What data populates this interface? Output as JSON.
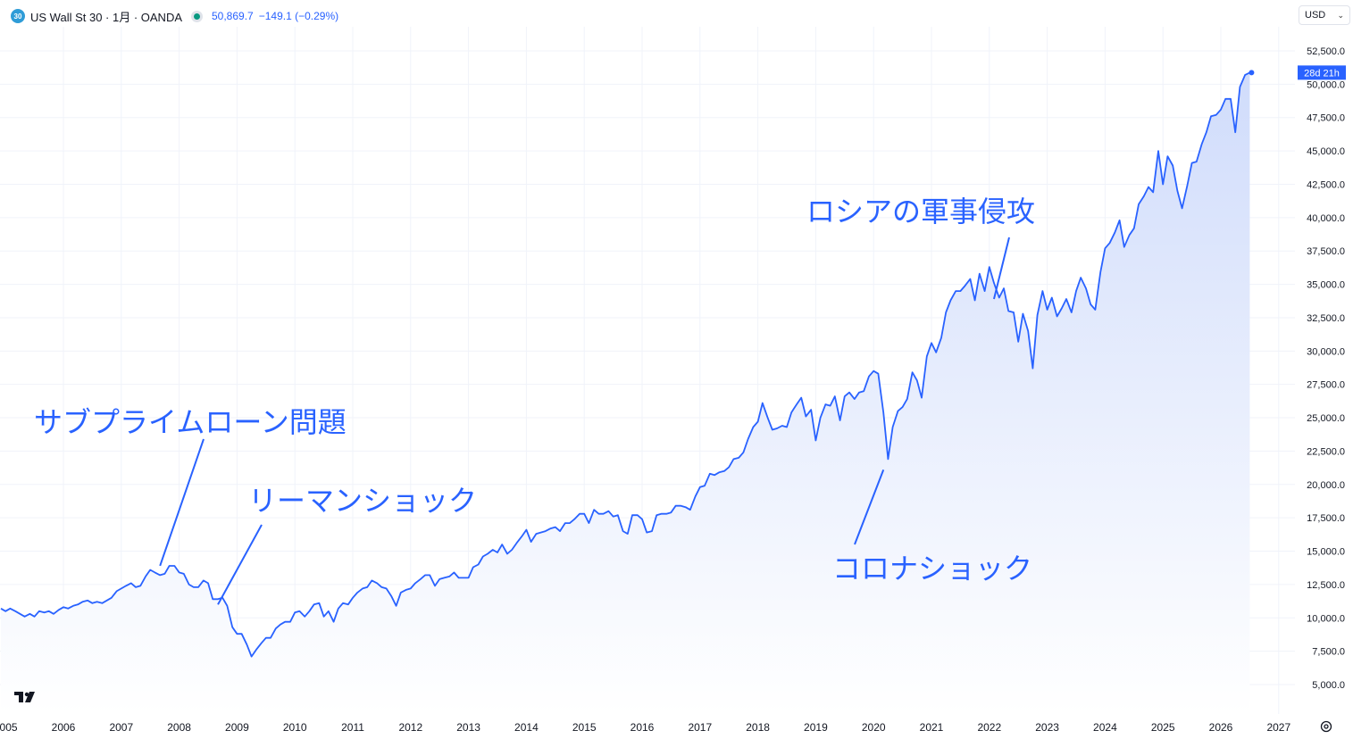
{
  "header": {
    "badge": "30",
    "title": "US Wall St 30 · 1月 · OANDA",
    "price": "50,869.7",
    "change": "−149.1 (−0.29%)"
  },
  "currency": {
    "label": "USD"
  },
  "countdown": "28d 21h",
  "colors": {
    "line": "#2962ff",
    "fill_top": "#d0dcfb",
    "fill_bottom": "#ffffff",
    "annotation": "#2962ff",
    "grid": "#f0f3fa"
  },
  "annotations": [
    {
      "text": "サブプライムローン問題",
      "x": 2007.67,
      "y": 13900
    },
    {
      "text": "リーマンショック",
      "x": 2008.67,
      "y": 11000
    },
    {
      "text": "コロナショック",
      "x": 2020.17,
      "y": 21100
    },
    {
      "text": "ロシアの軍事侵攻",
      "x": 2022.08,
      "y": 33900
    }
  ],
  "chart_data": {
    "type": "area",
    "xlabel": "",
    "ylabel": "",
    "x_ticks": [
      "2006",
      "2007",
      "2008",
      "2009",
      "2010",
      "2011",
      "2012",
      "2013",
      "2014",
      "2015",
      "2016",
      "2017",
      "2018",
      "2019",
      "2020",
      "2021",
      "2022",
      "2023",
      "2024",
      "2025",
      "2026",
      "2027"
    ],
    "y_ticks": [
      "5,000.0",
      "7,500.0",
      "10,000.0",
      "12,500.0",
      "15,000.0",
      "17,500.0",
      "20,000.0",
      "22,500.0",
      "25,000.0",
      "27,500.0",
      "30,000.0",
      "32,500.0",
      "35,000.0",
      "37,500.0",
      "40,000.0",
      "42,500.0",
      "45,000.0",
      "47,500.0",
      "50,000.0",
      "52,500.0"
    ],
    "ylim": [
      3000,
      54000
    ],
    "xlim": [
      2004.92,
      2027.7
    ],
    "grid": true,
    "series": [
      {
        "values": [
          [
            2004.92,
            10700
          ],
          [
            2005.0,
            10500
          ],
          [
            2005.08,
            10700
          ],
          [
            2005.17,
            10500
          ],
          [
            2005.25,
            10300
          ],
          [
            2005.33,
            10100
          ],
          [
            2005.42,
            10300
          ],
          [
            2005.5,
            10100
          ],
          [
            2005.58,
            10500
          ],
          [
            2005.67,
            10400
          ],
          [
            2005.75,
            10500
          ],
          [
            2005.83,
            10300
          ],
          [
            2005.92,
            10600
          ],
          [
            2006.0,
            10800
          ],
          [
            2006.08,
            10700
          ],
          [
            2006.17,
            10900
          ],
          [
            2006.25,
            11000
          ],
          [
            2006.33,
            11200
          ],
          [
            2006.42,
            11300
          ],
          [
            2006.5,
            11100
          ],
          [
            2006.58,
            11200
          ],
          [
            2006.67,
            11100
          ],
          [
            2006.75,
            11300
          ],
          [
            2006.83,
            11500
          ],
          [
            2006.92,
            12000
          ],
          [
            2007.0,
            12200
          ],
          [
            2007.08,
            12400
          ],
          [
            2007.17,
            12600
          ],
          [
            2007.25,
            12300
          ],
          [
            2007.33,
            12400
          ],
          [
            2007.42,
            13100
          ],
          [
            2007.5,
            13600
          ],
          [
            2007.58,
            13400
          ],
          [
            2007.67,
            13200
          ],
          [
            2007.75,
            13300
          ],
          [
            2007.83,
            13900
          ],
          [
            2007.92,
            13900
          ],
          [
            2008.0,
            13400
          ],
          [
            2008.08,
            13300
          ],
          [
            2008.17,
            12500
          ],
          [
            2008.25,
            12300
          ],
          [
            2008.33,
            12300
          ],
          [
            2008.42,
            12800
          ],
          [
            2008.5,
            12600
          ],
          [
            2008.58,
            11400
          ],
          [
            2008.67,
            11400
          ],
          [
            2008.75,
            11500
          ],
          [
            2008.83,
            10900
          ],
          [
            2008.92,
            9300
          ],
          [
            2009.0,
            8800
          ],
          [
            2009.08,
            8800
          ],
          [
            2009.17,
            8000
          ],
          [
            2009.25,
            7100
          ],
          [
            2009.33,
            7600
          ],
          [
            2009.42,
            8100
          ],
          [
            2009.5,
            8500
          ],
          [
            2009.58,
            8500
          ],
          [
            2009.67,
            9200
          ],
          [
            2009.75,
            9500
          ],
          [
            2009.83,
            9700
          ],
          [
            2009.92,
            9700
          ],
          [
            2010.0,
            10400
          ],
          [
            2010.08,
            10500
          ],
          [
            2010.17,
            10100
          ],
          [
            2010.25,
            10500
          ],
          [
            2010.33,
            11000
          ],
          [
            2010.42,
            11100
          ],
          [
            2010.5,
            10100
          ],
          [
            2010.58,
            10500
          ],
          [
            2010.67,
            9700
          ],
          [
            2010.75,
            10700
          ],
          [
            2010.83,
            11100
          ],
          [
            2010.92,
            11000
          ],
          [
            2011.0,
            11500
          ],
          [
            2011.08,
            11900
          ],
          [
            2011.17,
            12200
          ],
          [
            2011.25,
            12300
          ],
          [
            2011.33,
            12800
          ],
          [
            2011.42,
            12600
          ],
          [
            2011.5,
            12300
          ],
          [
            2011.58,
            12200
          ],
          [
            2011.67,
            11600
          ],
          [
            2011.75,
            10900
          ],
          [
            2011.83,
            11900
          ],
          [
            2011.92,
            12100
          ],
          [
            2012.0,
            12200
          ],
          [
            2012.08,
            12600
          ],
          [
            2012.17,
            12900
          ],
          [
            2012.25,
            13200
          ],
          [
            2012.33,
            13200
          ],
          [
            2012.42,
            12400
          ],
          [
            2012.5,
            12900
          ],
          [
            2012.58,
            13000
          ],
          [
            2012.67,
            13100
          ],
          [
            2012.75,
            13400
          ],
          [
            2012.83,
            13000
          ],
          [
            2012.92,
            13000
          ],
          [
            2013.0,
            13000
          ],
          [
            2013.08,
            13800
          ],
          [
            2013.17,
            14000
          ],
          [
            2013.25,
            14600
          ],
          [
            2013.33,
            14800
          ],
          [
            2013.42,
            15100
          ],
          [
            2013.5,
            14900
          ],
          [
            2013.58,
            15500
          ],
          [
            2013.67,
            14800
          ],
          [
            2013.75,
            15100
          ],
          [
            2013.83,
            15600
          ],
          [
            2013.92,
            16100
          ],
          [
            2014.0,
            16600
          ],
          [
            2014.08,
            15700
          ],
          [
            2014.17,
            16300
          ],
          [
            2014.25,
            16400
          ],
          [
            2014.33,
            16500
          ],
          [
            2014.42,
            16700
          ],
          [
            2014.5,
            16800
          ],
          [
            2014.58,
            16500
          ],
          [
            2014.67,
            17100
          ],
          [
            2014.75,
            17100
          ],
          [
            2014.83,
            17400
          ],
          [
            2014.92,
            17800
          ],
          [
            2015.0,
            17800
          ],
          [
            2015.08,
            17100
          ],
          [
            2015.17,
            18100
          ],
          [
            2015.25,
            17800
          ],
          [
            2015.33,
            17800
          ],
          [
            2015.42,
            18000
          ],
          [
            2015.5,
            17600
          ],
          [
            2015.58,
            17700
          ],
          [
            2015.67,
            16500
          ],
          [
            2015.75,
            16300
          ],
          [
            2015.83,
            17700
          ],
          [
            2015.92,
            17700
          ],
          [
            2016.0,
            17400
          ],
          [
            2016.08,
            16400
          ],
          [
            2016.17,
            16500
          ],
          [
            2016.25,
            17700
          ],
          [
            2016.33,
            17800
          ],
          [
            2016.42,
            17800
          ],
          [
            2016.5,
            17900
          ],
          [
            2016.58,
            18400
          ],
          [
            2016.67,
            18400
          ],
          [
            2016.75,
            18300
          ],
          [
            2016.83,
            18100
          ],
          [
            2016.92,
            19100
          ],
          [
            2017.0,
            19800
          ],
          [
            2017.08,
            19900
          ],
          [
            2017.17,
            20800
          ],
          [
            2017.25,
            20700
          ],
          [
            2017.33,
            20900
          ],
          [
            2017.42,
            21000
          ],
          [
            2017.5,
            21300
          ],
          [
            2017.58,
            21900
          ],
          [
            2017.67,
            22000
          ],
          [
            2017.75,
            22400
          ],
          [
            2017.83,
            23400
          ],
          [
            2017.92,
            24300
          ],
          [
            2018.0,
            24700
          ],
          [
            2018.08,
            26100
          ],
          [
            2018.17,
            25000
          ],
          [
            2018.25,
            24100
          ],
          [
            2018.33,
            24200
          ],
          [
            2018.42,
            24400
          ],
          [
            2018.5,
            24300
          ],
          [
            2018.58,
            25400
          ],
          [
            2018.67,
            26000
          ],
          [
            2018.75,
            26500
          ],
          [
            2018.83,
            25100
          ],
          [
            2018.92,
            25600
          ],
          [
            2019.0,
            23300
          ],
          [
            2019.08,
            25000
          ],
          [
            2019.17,
            26000
          ],
          [
            2019.25,
            25900
          ],
          [
            2019.33,
            26600
          ],
          [
            2019.42,
            24800
          ],
          [
            2019.5,
            26600
          ],
          [
            2019.58,
            26900
          ],
          [
            2019.67,
            26400
          ],
          [
            2019.75,
            26900
          ],
          [
            2019.83,
            27000
          ],
          [
            2019.92,
            28100
          ],
          [
            2020.0,
            28500
          ],
          [
            2020.08,
            28300
          ],
          [
            2020.17,
            25400
          ],
          [
            2020.25,
            21900
          ],
          [
            2020.33,
            24300
          ],
          [
            2020.42,
            25500
          ],
          [
            2020.5,
            25800
          ],
          [
            2020.58,
            26400
          ],
          [
            2020.67,
            28400
          ],
          [
            2020.75,
            27800
          ],
          [
            2020.83,
            26500
          ],
          [
            2020.92,
            29600
          ],
          [
            2021.0,
            30600
          ],
          [
            2021.08,
            29900
          ],
          [
            2021.17,
            31000
          ],
          [
            2021.25,
            32900
          ],
          [
            2021.33,
            33800
          ],
          [
            2021.42,
            34500
          ],
          [
            2021.5,
            34500
          ],
          [
            2021.58,
            34900
          ],
          [
            2021.67,
            35400
          ],
          [
            2021.75,
            33800
          ],
          [
            2021.83,
            35800
          ],
          [
            2021.92,
            34500
          ],
          [
            2022.0,
            36300
          ],
          [
            2022.08,
            35100
          ],
          [
            2022.17,
            34000
          ],
          [
            2022.25,
            34700
          ],
          [
            2022.33,
            33000
          ],
          [
            2022.42,
            32900
          ],
          [
            2022.5,
            30700
          ],
          [
            2022.58,
            32800
          ],
          [
            2022.67,
            31500
          ],
          [
            2022.75,
            28700
          ],
          [
            2022.83,
            32700
          ],
          [
            2022.92,
            34500
          ],
          [
            2023.0,
            33100
          ],
          [
            2023.08,
            34000
          ],
          [
            2023.17,
            32600
          ],
          [
            2023.25,
            33200
          ],
          [
            2023.33,
            33900
          ],
          [
            2023.42,
            32900
          ],
          [
            2023.5,
            34500
          ],
          [
            2023.58,
            35500
          ],
          [
            2023.67,
            34700
          ],
          [
            2023.75,
            33500
          ],
          [
            2023.83,
            33100
          ],
          [
            2023.92,
            35900
          ],
          [
            2024.0,
            37700
          ],
          [
            2024.08,
            38100
          ],
          [
            2024.17,
            38900
          ],
          [
            2024.25,
            39800
          ],
          [
            2024.33,
            37800
          ],
          [
            2024.42,
            38700
          ],
          [
            2024.5,
            39200
          ],
          [
            2024.58,
            41000
          ],
          [
            2024.67,
            41600
          ],
          [
            2024.75,
            42300
          ],
          [
            2024.83,
            41900
          ],
          [
            2024.92,
            45000
          ],
          [
            2025.0,
            42500
          ],
          [
            2025.08,
            44600
          ],
          [
            2025.17,
            43900
          ],
          [
            2025.25,
            42000
          ],
          [
            2025.33,
            40700
          ],
          [
            2025.42,
            42400
          ],
          [
            2025.5,
            44100
          ],
          [
            2025.58,
            44200
          ],
          [
            2025.67,
            45500
          ],
          [
            2025.75,
            46400
          ],
          [
            2025.83,
            47600
          ],
          [
            2025.92,
            47700
          ],
          [
            2026.0,
            48100
          ],
          [
            2026.08,
            48900
          ],
          [
            2026.17,
            48900
          ],
          [
            2026.25,
            46400
          ],
          [
            2026.33,
            49800
          ],
          [
            2026.42,
            50700
          ],
          [
            2026.5,
            50869.7
          ]
        ]
      }
    ]
  }
}
